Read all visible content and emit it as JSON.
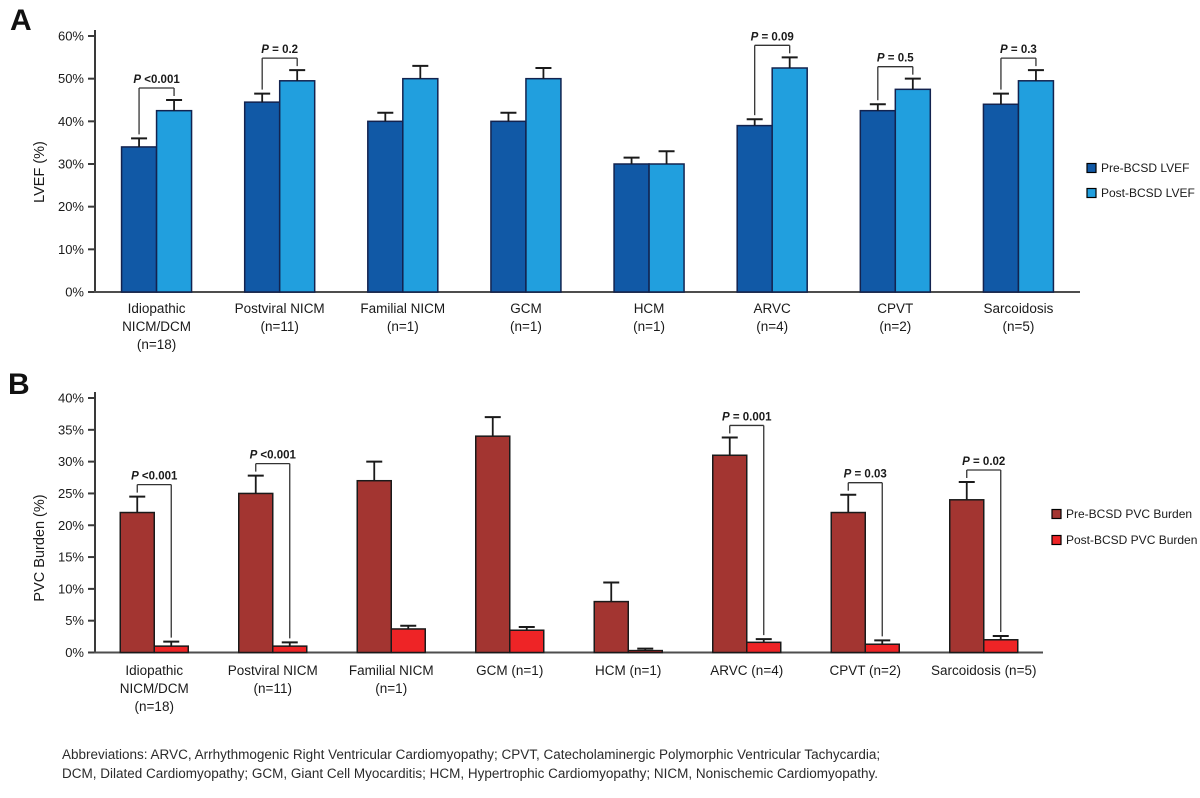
{
  "figure": {
    "panel_a_letter": "A",
    "panel_b_letter": "B",
    "footnote_line1": "Abbreviations: ARVC, Arrhythmogenic Right Ventricular Cardiomyopathy; CPVT, Catecholaminergic Polymorphic Ventricular Tachycardia;",
    "footnote_line2": "DCM, Dilated Cardiomyopathy; GCM, Giant Cell Myocarditis; HCM, Hypertrophic Cardiomyopathy; NICM, Nonischemic Cardiomyopathy."
  },
  "chart_data": [
    {
      "type": "bar",
      "panel": "A",
      "ylabel": "LVEF (%)",
      "ylim": [
        0,
        60
      ],
      "ytick_step": 10,
      "ytick_labels": [
        "0%",
        "10%",
        "20%",
        "30%",
        "40%",
        "50%",
        "60%"
      ],
      "grid": false,
      "legend_position": "right",
      "axis_color": "#3a3a3a",
      "series": [
        {
          "name": "Pre-BCSD LVEF",
          "color": "#1159A6",
          "outline": "#13234F"
        },
        {
          "name": "Post-BCSD LVEF",
          "color": "#219FDE",
          "outline": "#13234F"
        }
      ],
      "groups": [
        {
          "label_lines": [
            "Idiopathic",
            "NICM/DCM",
            "(n=18)"
          ],
          "pre": 34,
          "pre_err": 2,
          "post": 42.5,
          "post_err": 2.5,
          "p_label": "P <0.001"
        },
        {
          "label_lines": [
            "Postviral NICM",
            "(n=11)"
          ],
          "pre": 44.5,
          "pre_err": 2,
          "post": 49.5,
          "post_err": 2.5,
          "p_label": "P = 0.2"
        },
        {
          "label_lines": [
            "Familial NICM",
            "(n=1)"
          ],
          "pre": 40,
          "pre_err": 2,
          "post": 50,
          "post_err": 3,
          "p_label": null
        },
        {
          "label_lines": [
            "GCM",
            "(n=1)"
          ],
          "pre": 40,
          "pre_err": 2,
          "post": 50,
          "post_err": 2.5,
          "p_label": null
        },
        {
          "label_lines": [
            "HCM",
            "(n=1)"
          ],
          "pre": 30,
          "pre_err": 1.5,
          "post": 30,
          "post_err": 3,
          "p_label": null
        },
        {
          "label_lines": [
            "ARVC",
            "(n=4)"
          ],
          "pre": 39,
          "pre_err": 1.5,
          "post": 52.5,
          "post_err": 2.5,
          "p_label": "P = 0.09"
        },
        {
          "label_lines": [
            "CPVT",
            "(n=2)"
          ],
          "pre": 42.5,
          "pre_err": 1.5,
          "post": 47.5,
          "post_err": 2.5,
          "p_label": "P = 0.5"
        },
        {
          "label_lines": [
            "Sarcoidosis",
            "(n=5)"
          ],
          "pre": 44,
          "pre_err": 2.5,
          "post": 49.5,
          "post_err": 2.5,
          "p_label": "P = 0.3"
        }
      ]
    },
    {
      "type": "bar",
      "panel": "B",
      "ylabel": "PVC Burden (%)",
      "ylim": [
        0,
        40
      ],
      "ytick_step": 5,
      "ytick_labels": [
        "0%",
        "5%",
        "10%",
        "15%",
        "20%",
        "25%",
        "30%",
        "35%",
        "40%"
      ],
      "grid": false,
      "legend_position": "right",
      "axis_color": "#3a3a3a",
      "series": [
        {
          "name": "Pre-BCSD PVC Burden",
          "color": "#A33531",
          "outline": "#1A1A1A"
        },
        {
          "name": "Post-BCSD PVC Burden",
          "color": "#EE2426",
          "outline": "#1A1A1A"
        }
      ],
      "groups": [
        {
          "label_lines": [
            "Idiopathic",
            "NICM/DCM",
            "(n=18)"
          ],
          "pre": 22,
          "pre_err": 2.5,
          "post": 1.0,
          "post_err": 0.7,
          "p_label": "P <0.001"
        },
        {
          "label_lines": [
            "Postviral NICM",
            "(n=11)"
          ],
          "pre": 25,
          "pre_err": 2.8,
          "post": 1.0,
          "post_err": 0.6,
          "p_label": "P <0.001"
        },
        {
          "label_lines": [
            "Familial NICM",
            "(n=1)"
          ],
          "pre": 27,
          "pre_err": 3,
          "post": 3.7,
          "post_err": 0.5,
          "p_label": null
        },
        {
          "label_lines": [
            "GCM (n=1)"
          ],
          "pre": 34,
          "pre_err": 3,
          "post": 3.5,
          "post_err": 0.5,
          "p_label": null
        },
        {
          "label_lines": [
            "HCM (n=1)"
          ],
          "pre": 8,
          "pre_err": 3,
          "post": 0.3,
          "post_err": 0.3,
          "p_label": null
        },
        {
          "label_lines": [
            "ARVC (n=4)"
          ],
          "pre": 31,
          "pre_err": 2.8,
          "post": 1.6,
          "post_err": 0.5,
          "p_label": "P = 0.001"
        },
        {
          "label_lines": [
            "CPVT (n=2)"
          ],
          "pre": 22,
          "pre_err": 2.8,
          "post": 1.3,
          "post_err": 0.6,
          "p_label": "P = 0.03"
        },
        {
          "label_lines": [
            "Sarcoidosis (n=5)"
          ],
          "pre": 24,
          "pre_err": 2.8,
          "post": 2.0,
          "post_err": 0.6,
          "p_label": "P = 0.02"
        }
      ]
    }
  ]
}
